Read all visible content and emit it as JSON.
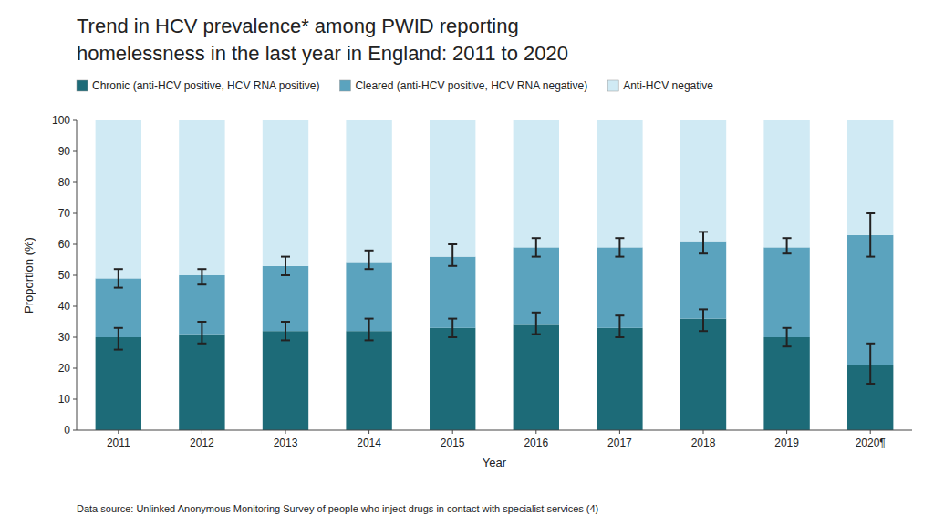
{
  "chart_data": {
    "type": "bar",
    "stacked": true,
    "title": "Trend in HCV prevalence* among PWID reporting",
    "subtitle": "homelessness in the last year in England: 2011 to 2020",
    "x_label": "Year",
    "y_label": "Proportion (%)",
    "annotations": [
      "Data source: Unlinked Anonymous Monitoring Survey of people who inject drugs in contact with specialist services (4)"
    ],
    "categories": [
      "2011",
      "2012",
      "2013",
      "2014",
      "2015",
      "2016",
      "2017",
      "2018",
      "2019",
      "2020¶"
    ],
    "series": [
      {
        "name": "Chronic (anti-HCV positive, HCV RNA positive)",
        "color": "#1d6b78",
        "values": [
          30,
          31,
          32,
          32,
          33,
          34,
          33,
          36,
          30,
          21
        ],
        "ci_low": [
          26,
          28,
          29,
          29,
          30,
          31,
          30,
          32,
          27,
          15
        ],
        "ci_high": [
          33,
          35,
          35,
          36,
          36,
          38,
          37,
          39,
          33,
          28
        ]
      },
      {
        "name": "Cleared (anti-HCV positive, HCV RNA negative)",
        "color": "#5ba3be",
        "values": [
          19,
          19,
          21,
          22,
          23,
          25,
          26,
          25,
          29,
          42
        ],
        "ci_low": [
          46,
          47,
          50,
          52,
          53,
          56,
          56,
          57,
          57,
          56
        ],
        "ci_high": [
          52,
          52,
          56,
          58,
          60,
          62,
          62,
          64,
          62,
          70
        ]
      },
      {
        "name": "Anti-HCV negative",
        "color": "#d0eaf4",
        "values": [
          51,
          50,
          47,
          46,
          44,
          41,
          41,
          39,
          41,
          37
        ]
      }
    ],
    "ylim": [
      0,
      100
    ],
    "yticks": [
      0,
      10,
      20,
      30,
      40,
      50,
      60,
      70,
      80,
      90,
      100
    ],
    "grid": false,
    "legend": "top"
  }
}
